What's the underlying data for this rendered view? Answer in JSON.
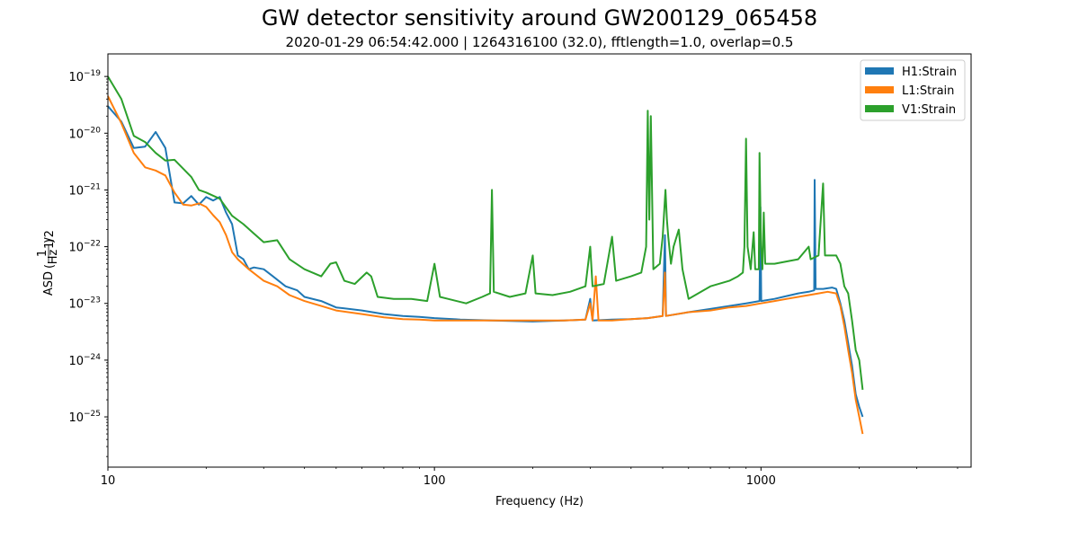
{
  "chart_data": {
    "type": "line",
    "title": "GW detector sensitivity around GW200129_065458",
    "subtitle": "2020-01-29 06:54:42.000 | 1264316100 (32.0), fftlength=1.0, overlap=0.5",
    "xlabel": "Frequency (Hz)",
    "ylabel": "ASD",
    "ylabel_unit": "1/Hz^1/2",
    "x_scale": "log",
    "y_scale": "log",
    "xlim": [
      10,
      4400
    ],
    "ylim": [
      1.3e-26,
      2.5e-19
    ],
    "x_ticks": [
      {
        "value": 10,
        "label": "10"
      },
      {
        "value": 100,
        "label": "100"
      },
      {
        "value": 1000,
        "label": "1000"
      }
    ],
    "y_ticks": [
      {
        "value": 1e-25,
        "mant": "10",
        "exp": "−25"
      },
      {
        "value": 1e-24,
        "mant": "10",
        "exp": "−24"
      },
      {
        "value": 1e-23,
        "mant": "10",
        "exp": "−23"
      },
      {
        "value": 1e-22,
        "mant": "10",
        "exp": "−22"
      },
      {
        "value": 1e-21,
        "mant": "10",
        "exp": "−21"
      },
      {
        "value": 1e-20,
        "mant": "10",
        "exp": "−20"
      },
      {
        "value": 1e-19,
        "mant": "10",
        "exp": "−19"
      }
    ],
    "grid": false,
    "legend_position": "top-right",
    "series": [
      {
        "name": "H1:Strain",
        "color": "#1f77b4",
        "points": [
          [
            10,
            3e-20
          ],
          [
            11,
            1.6e-20
          ],
          [
            12,
            5.5e-21
          ],
          [
            13,
            5.8e-21
          ],
          [
            14,
            1.05e-20
          ],
          [
            15,
            5.5e-21
          ],
          [
            16,
            6e-22
          ],
          [
            17,
            5.8e-22
          ],
          [
            18,
            7.8e-22
          ],
          [
            19,
            5.5e-22
          ],
          [
            20,
            7.5e-22
          ],
          [
            21,
            6.5e-22
          ],
          [
            22,
            7.5e-22
          ],
          [
            23,
            4e-22
          ],
          [
            24,
            2.5e-22
          ],
          [
            25,
            7e-23
          ],
          [
            26,
            6e-23
          ],
          [
            27,
            4e-23
          ],
          [
            28,
            4.3e-23
          ],
          [
            30,
            4e-23
          ],
          [
            32,
            3e-23
          ],
          [
            35,
            2e-23
          ],
          [
            38,
            1.7e-23
          ],
          [
            40,
            1.3e-23
          ],
          [
            45,
            1.1e-23
          ],
          [
            50,
            8.5e-24
          ],
          [
            60,
            7.5e-24
          ],
          [
            70,
            6.5e-24
          ],
          [
            80,
            6e-24
          ],
          [
            90,
            5.8e-24
          ],
          [
            100,
            5.5e-24
          ],
          [
            120,
            5.2e-24
          ],
          [
            150,
            5e-24
          ],
          [
            200,
            4.8e-24
          ],
          [
            250,
            5e-24
          ],
          [
            290,
            5.2e-24
          ],
          [
            300,
            1.2e-23
          ],
          [
            305,
            5e-24
          ],
          [
            350,
            5.2e-24
          ],
          [
            400,
            5.3e-24
          ],
          [
            450,
            5.5e-24
          ],
          [
            500,
            6e-24
          ],
          [
            508,
            1.6e-22
          ],
          [
            512,
            6e-24
          ],
          [
            600,
            7e-24
          ],
          [
            700,
            8e-24
          ],
          [
            800,
            9e-24
          ],
          [
            900,
            1e-23
          ],
          [
            990,
            1.1e-23
          ],
          [
            996,
            5e-22
          ],
          [
            1002,
            1.1e-23
          ],
          [
            1100,
            1.2e-23
          ],
          [
            1200,
            1.35e-23
          ],
          [
            1300,
            1.5e-23
          ],
          [
            1400,
            1.6e-23
          ],
          [
            1455,
            1.7e-23
          ],
          [
            1460,
            1.5e-21
          ],
          [
            1470,
            1.8e-23
          ],
          [
            1550,
            1.8e-23
          ],
          [
            1650,
            1.9e-23
          ],
          [
            1700,
            1.8e-23
          ],
          [
            1750,
            1e-23
          ],
          [
            1800,
            5e-24
          ],
          [
            1850,
            2e-24
          ],
          [
            1900,
            8e-25
          ],
          [
            1950,
            2.5e-25
          ],
          [
            2000,
            1.5e-25
          ],
          [
            2048,
            1e-25
          ]
        ]
      },
      {
        "name": "L1:Strain",
        "color": "#ff7f0e",
        "points": [
          [
            10,
            4.5e-20
          ],
          [
            11,
            1.5e-20
          ],
          [
            12,
            4.5e-21
          ],
          [
            13,
            2.5e-21
          ],
          [
            14,
            2.2e-21
          ],
          [
            15,
            1.8e-21
          ],
          [
            16,
            9e-22
          ],
          [
            17,
            5.5e-22
          ],
          [
            18,
            5.3e-22
          ],
          [
            19,
            5.8e-22
          ],
          [
            20,
            5e-22
          ],
          [
            21,
            3.6e-22
          ],
          [
            22,
            2.7e-22
          ],
          [
            23,
            1.6e-22
          ],
          [
            24,
            8e-23
          ],
          [
            25,
            6e-23
          ],
          [
            27,
            4e-23
          ],
          [
            30,
            2.5e-23
          ],
          [
            33,
            2e-23
          ],
          [
            36,
            1.4e-23
          ],
          [
            40,
            1.1e-23
          ],
          [
            45,
            9e-24
          ],
          [
            50,
            7.5e-24
          ],
          [
            60,
            6.5e-24
          ],
          [
            70,
            5.7e-24
          ],
          [
            80,
            5.3e-24
          ],
          [
            90,
            5.2e-24
          ],
          [
            100,
            5e-24
          ],
          [
            120,
            5e-24
          ],
          [
            150,
            5e-24
          ],
          [
            200,
            5e-24
          ],
          [
            250,
            5e-24
          ],
          [
            290,
            5.2e-24
          ],
          [
            300,
            1e-23
          ],
          [
            305,
            5e-24
          ],
          [
            312,
            3e-23
          ],
          [
            318,
            5e-24
          ],
          [
            350,
            5e-24
          ],
          [
            400,
            5.3e-24
          ],
          [
            450,
            5.5e-24
          ],
          [
            500,
            6e-24
          ],
          [
            508,
            3.5e-23
          ],
          [
            512,
            6e-24
          ],
          [
            600,
            7e-24
          ],
          [
            700,
            7.5e-24
          ],
          [
            800,
            8.5e-24
          ],
          [
            900,
            9e-24
          ],
          [
            1000,
            1e-23
          ],
          [
            1100,
            1.1e-23
          ],
          [
            1200,
            1.2e-23
          ],
          [
            1300,
            1.3e-23
          ],
          [
            1400,
            1.4e-23
          ],
          [
            1500,
            1.5e-23
          ],
          [
            1600,
            1.6e-23
          ],
          [
            1700,
            1.5e-23
          ],
          [
            1750,
            9e-24
          ],
          [
            1800,
            4e-24
          ],
          [
            1850,
            1.5e-24
          ],
          [
            1900,
            6e-25
          ],
          [
            1950,
            2e-25
          ],
          [
            2000,
            1e-25
          ],
          [
            2048,
            5e-26
          ]
        ]
      },
      {
        "name": "V1:Strain",
        "color": "#2ca02c",
        "points": [
          [
            10,
            1e-19
          ],
          [
            11,
            4e-20
          ],
          [
            12,
            9e-21
          ],
          [
            13,
            7e-21
          ],
          [
            14,
            4.5e-21
          ],
          [
            15,
            3.3e-21
          ],
          [
            16,
            3.4e-21
          ],
          [
            18,
            1.7e-21
          ],
          [
            19,
            1e-21
          ],
          [
            20,
            9e-22
          ],
          [
            22,
            7e-22
          ],
          [
            24,
            3.5e-22
          ],
          [
            26,
            2.5e-22
          ],
          [
            28,
            1.7e-22
          ],
          [
            30,
            1.2e-22
          ],
          [
            33,
            1.3e-22
          ],
          [
            36,
            6e-23
          ],
          [
            40,
            4e-23
          ],
          [
            45,
            3e-23
          ],
          [
            48,
            5e-23
          ],
          [
            50,
            5.3e-23
          ],
          [
            53,
            2.5e-23
          ],
          [
            57,
            2.2e-23
          ],
          [
            62,
            3.5e-23
          ],
          [
            64,
            3e-23
          ],
          [
            67,
            1.3e-23
          ],
          [
            75,
            1.2e-23
          ],
          [
            85,
            1.2e-23
          ],
          [
            95,
            1.1e-23
          ],
          [
            100,
            5e-23
          ],
          [
            104,
            1.3e-23
          ],
          [
            110,
            1.2e-23
          ],
          [
            125,
            1e-23
          ],
          [
            140,
            1.3e-23
          ],
          [
            148,
            1.5e-23
          ],
          [
            150,
            1e-21
          ],
          [
            152,
            1.6e-23
          ],
          [
            170,
            1.3e-23
          ],
          [
            190,
            1.5e-23
          ],
          [
            200,
            7e-23
          ],
          [
            204,
            1.5e-23
          ],
          [
            230,
            1.4e-23
          ],
          [
            260,
            1.6e-23
          ],
          [
            290,
            2e-23
          ],
          [
            300,
            1e-22
          ],
          [
            305,
            2e-23
          ],
          [
            330,
            2.2e-23
          ],
          [
            350,
            1.5e-22
          ],
          [
            360,
            2.5e-23
          ],
          [
            400,
            3e-23
          ],
          [
            430,
            3.5e-23
          ],
          [
            445,
            1e-22
          ],
          [
            450,
            2.5e-20
          ],
          [
            455,
            3e-22
          ],
          [
            460,
            2e-20
          ],
          [
            468,
            4e-23
          ],
          [
            490,
            5e-23
          ],
          [
            500,
            1.5e-22
          ],
          [
            510,
            1e-21
          ],
          [
            515,
            3e-22
          ],
          [
            520,
            1.5e-22
          ],
          [
            530,
            5e-23
          ],
          [
            540,
            1e-22
          ],
          [
            560,
            2e-22
          ],
          [
            575,
            4e-23
          ],
          [
            600,
            1.2e-23
          ],
          [
            700,
            2e-23
          ],
          [
            800,
            2.5e-23
          ],
          [
            850,
            3e-23
          ],
          [
            880,
            3.5e-23
          ],
          [
            890,
            1e-22
          ],
          [
            900,
            8e-21
          ],
          [
            910,
            1e-22
          ],
          [
            930,
            4e-23
          ],
          [
            950,
            1.8e-22
          ],
          [
            960,
            4e-23
          ],
          [
            985,
            4e-23
          ],
          [
            990,
            4.5e-21
          ],
          [
            1000,
            1e-22
          ],
          [
            1010,
            4e-23
          ],
          [
            1020,
            4e-22
          ],
          [
            1030,
            5e-23
          ],
          [
            1100,
            5e-23
          ],
          [
            1200,
            5.5e-23
          ],
          [
            1300,
            6e-23
          ],
          [
            1400,
            1e-22
          ],
          [
            1420,
            6e-23
          ],
          [
            1500,
            7e-23
          ],
          [
            1550,
            1.3e-21
          ],
          [
            1570,
            7e-23
          ],
          [
            1700,
            7e-23
          ],
          [
            1750,
            5e-23
          ],
          [
            1800,
            2e-23
          ],
          [
            1850,
            1.5e-23
          ],
          [
            1900,
            5e-24
          ],
          [
            1950,
            1.5e-24
          ],
          [
            2000,
            1e-24
          ],
          [
            2048,
            3e-25
          ]
        ]
      }
    ]
  }
}
